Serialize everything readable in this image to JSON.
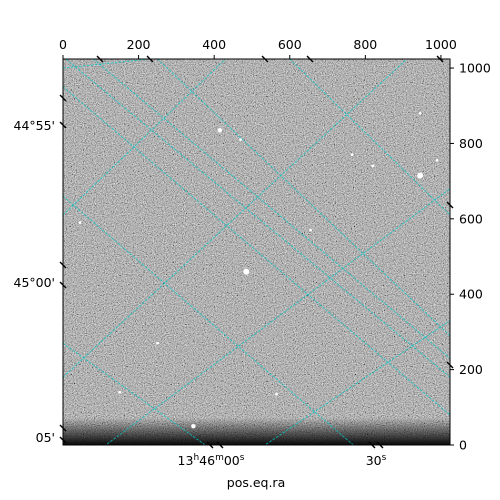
{
  "chart_data": {
    "type": "heatmap",
    "description_kind": "astronomical image with celestial coordinate grid",
    "colormap": "grayscale",
    "background_level": "mid-gray noise",
    "grid_color": "#00c8c8",
    "xlabel": "pos.eq.ra",
    "pixel_axes": {
      "top_ticks": [
        0,
        200,
        400,
        600,
        800,
        1000
      ],
      "right_ticks": [
        0,
        200,
        400,
        600,
        800,
        1000
      ],
      "xlim": [
        0,
        1024
      ],
      "ylim": [
        0,
        1024
      ]
    },
    "ra_ticks": [
      {
        "label": "13",
        "sup": "h",
        "label2": "46",
        "sup2": "m",
        "label3": "00",
        "sup3": "s"
      },
      {
        "label": "30",
        "sup": "s"
      }
    ],
    "dec_ticks": [
      "44°55'",
      "45°00'",
      "05'"
    ],
    "stars": [
      {
        "x": 415,
        "y": 835,
        "mag": "medium"
      },
      {
        "x": 470,
        "y": 810,
        "mag": "small"
      },
      {
        "x": 945,
        "y": 715,
        "mag": "bright"
      },
      {
        "x": 990,
        "y": 755,
        "mag": "small"
      },
      {
        "x": 945,
        "y": 880,
        "mag": "small"
      },
      {
        "x": 45,
        "y": 590,
        "mag": "small"
      },
      {
        "x": 485,
        "y": 460,
        "mag": "bright"
      },
      {
        "x": 250,
        "y": 270,
        "mag": "small"
      },
      {
        "x": 565,
        "y": 135,
        "mag": "small"
      },
      {
        "x": 345,
        "y": 50,
        "mag": "medium"
      },
      {
        "x": 765,
        "y": 770,
        "mag": "small"
      },
      {
        "x": 820,
        "y": 740,
        "mag": "small"
      },
      {
        "x": 150,
        "y": 140,
        "mag": "small"
      },
      {
        "x": 655,
        "y": 570,
        "mag": "small"
      }
    ]
  }
}
